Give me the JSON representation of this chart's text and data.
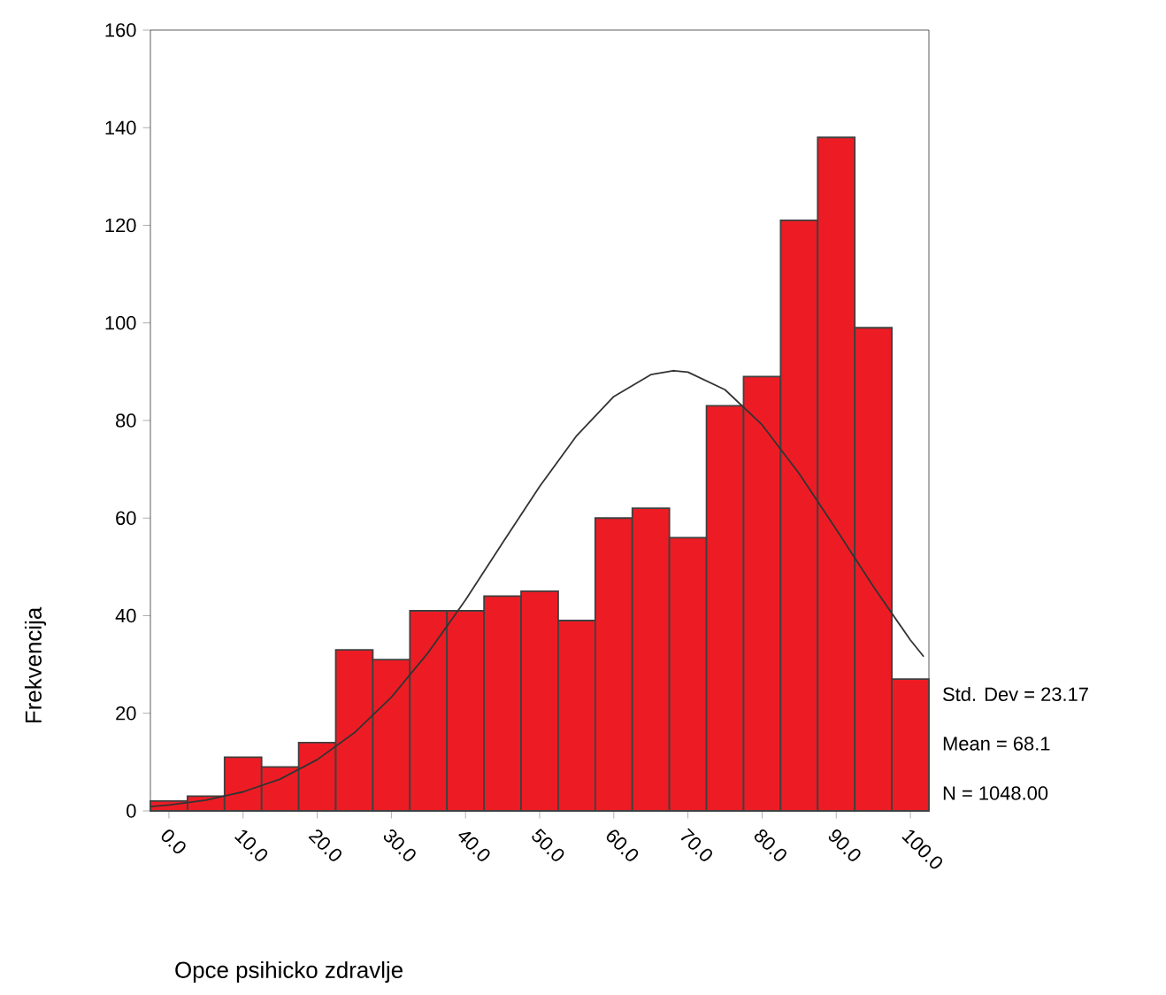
{
  "chart_data": {
    "type": "histogram",
    "bins": [
      -2.5,
      2.5,
      7.5,
      12.5,
      17.5,
      22.5,
      27.5,
      32.5,
      37.5,
      42.5,
      47.5,
      52.5,
      57.5,
      62.5,
      67.5,
      72.5,
      77.5,
      82.5,
      87.5,
      92.5,
      97.5,
      102.5
    ],
    "values": [
      2,
      3,
      11,
      9,
      14,
      33,
      31,
      41,
      41,
      44,
      45,
      39,
      60,
      62,
      56,
      83,
      89,
      121,
      138,
      99,
      27
    ],
    "color": "#ed1c24",
    "series": [
      {
        "type": "line",
        "color": "#333333",
        "x": [
          -2.5,
          0,
          5,
          10,
          15,
          20,
          25,
          30,
          35,
          40,
          45,
          50,
          55,
          60,
          65,
          68,
          70,
          75,
          80,
          85,
          90,
          95,
          100,
          101.8
        ],
        "values": [
          0.9,
          1.2,
          2.2,
          3.9,
          6.5,
          10.5,
          16,
          23.3,
          32.5,
          43.2,
          54.9,
          66.5,
          76.9,
          84.9,
          89.4,
          90.2,
          89.9,
          86.3,
          79.1,
          69.1,
          57.7,
          46,
          35,
          31.6
        ]
      }
    ],
    "xlim": [
      -2.5,
      102.5
    ],
    "xticks": [
      {
        "value": 0,
        "label": "0.0"
      },
      {
        "value": 10,
        "label": "10.0"
      },
      {
        "value": 20,
        "label": "20.0"
      },
      {
        "value": 30,
        "label": "30.0"
      },
      {
        "value": 40,
        "label": "40.0"
      },
      {
        "value": 50,
        "label": "50.0"
      },
      {
        "value": 60,
        "label": "60.0"
      },
      {
        "value": 70,
        "label": "70.0"
      },
      {
        "value": 80,
        "label": "80.0"
      },
      {
        "value": 90,
        "label": "90.0"
      },
      {
        "value": 100,
        "label": "100.0"
      }
    ],
    "ylim": [
      0,
      160
    ],
    "yticks": [
      0,
      20,
      40,
      60,
      80,
      100,
      120,
      140,
      160
    ],
    "xlabel": "Opce psihicko zdravlje",
    "ylabel": "Frekvencija",
    "annotations": [
      "Std. Dev = 23.17",
      "Mean = 68.1",
      "N = 1048.00"
    ]
  }
}
